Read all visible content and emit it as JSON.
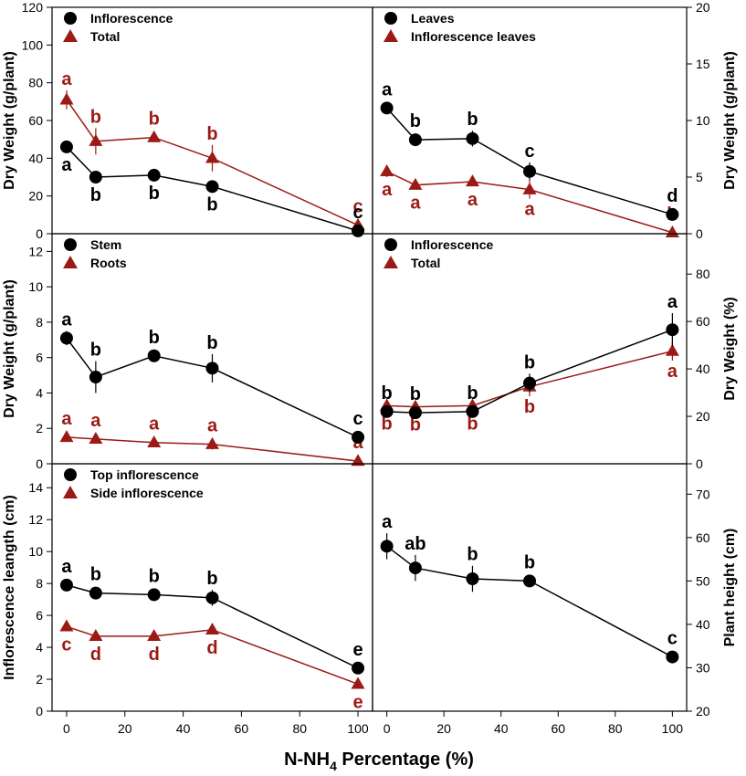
{
  "colors": {
    "s1": "#000000",
    "s2": "#9c1a15"
  },
  "x_axis_title": {
    "main": "N-NH",
    "sub": "4",
    "tail": " Percentage (%)"
  },
  "chart_data": [
    {
      "type": "line",
      "ylabel": "Dry Weight (g/plant)",
      "y_side": "left",
      "ylim": [
        0,
        120
      ],
      "yticks": [
        0,
        20,
        40,
        60,
        80,
        100,
        120
      ],
      "xlim": [
        -5,
        105
      ],
      "xticks": [],
      "legend": "top-left",
      "series": [
        {
          "name": "Inflorescence",
          "marker": "circle",
          "x": [
            0,
            10,
            30,
            50,
            100
          ],
          "y": [
            46,
            30,
            31,
            25,
            1.5
          ],
          "err": [
            3,
            2,
            2,
            3,
            1
          ],
          "letters": [
            "a",
            "b",
            "b",
            "b",
            "c"
          ],
          "letter_pos": [
            "below",
            "below",
            "below",
            "below",
            "above"
          ]
        },
        {
          "name": "Total",
          "marker": "triangle",
          "x": [
            0,
            10,
            30,
            50,
            100
          ],
          "y": [
            71,
            49,
            51,
            40,
            4.5
          ],
          "err": [
            5,
            7,
            2,
            7,
            1
          ],
          "letters": [
            "a",
            "b",
            "b",
            "b",
            "c"
          ],
          "letter_pos": [
            "above",
            "above",
            "above",
            "above",
            "above"
          ]
        }
      ]
    },
    {
      "type": "line",
      "ylabel": "Dry Weight (g/plant)",
      "y_side": "right",
      "ylim": [
        0,
        20
      ],
      "yticks": [
        0,
        5,
        10,
        15,
        20
      ],
      "xlim": [
        -5,
        105
      ],
      "xticks": [],
      "legend": "top-left",
      "series": [
        {
          "name": "Leaves",
          "marker": "circle",
          "x": [
            0,
            10,
            30,
            50,
            100
          ],
          "y": [
            11.1,
            8.3,
            8.4,
            5.5,
            1.7
          ],
          "err": [
            0.5,
            0.4,
            0.7,
            0.8,
            0.2
          ],
          "letters": [
            "a",
            "b",
            "b",
            "c",
            "d"
          ],
          "letter_pos": [
            "above",
            "above",
            "above",
            "above",
            "above"
          ]
        },
        {
          "name": "Inflorescence leaves",
          "marker": "triangle",
          "x": [
            0,
            10,
            30,
            50,
            100
          ],
          "y": [
            5.5,
            4.3,
            4.6,
            3.9,
            0.1
          ],
          "err": [
            0.5,
            0.3,
            0.3,
            0.8,
            0.1
          ],
          "letters": [
            "a",
            "a",
            "a",
            "a",
            "b"
          ],
          "letter_pos": [
            "below",
            "below",
            "below",
            "below",
            "above"
          ]
        }
      ]
    },
    {
      "type": "line",
      "ylabel": "Dry Weight (g/plant)",
      "y_side": "left",
      "ylim": [
        0,
        13
      ],
      "yticks": [
        0,
        2,
        4,
        6,
        8,
        10,
        12
      ],
      "xlim": [
        -5,
        105
      ],
      "xticks": [],
      "legend": "top-left",
      "series": [
        {
          "name": "Stem",
          "marker": "circle",
          "x": [
            0,
            10,
            30,
            50,
            100
          ],
          "y": [
            7.1,
            4.9,
            6.1,
            5.4,
            1.5
          ],
          "err": [
            0.4,
            0.9,
            0.3,
            0.8,
            0.2
          ],
          "letters": [
            "a",
            "b",
            "b",
            "b",
            "c"
          ],
          "letter_pos": [
            "above",
            "above",
            "above",
            "above",
            "above"
          ]
        },
        {
          "name": "Roots",
          "marker": "triangle",
          "x": [
            0,
            10,
            30,
            50,
            100
          ],
          "y": [
            1.5,
            1.4,
            1.2,
            1.1,
            0.15
          ],
          "err": [
            0.2,
            0.2,
            0.1,
            0.3,
            0.05
          ],
          "letters": [
            "a",
            "a",
            "a",
            "a",
            "a"
          ],
          "letter_pos": [
            "above",
            "above",
            "above",
            "above",
            "above"
          ]
        }
      ]
    },
    {
      "type": "line",
      "ylabel": "Dry Weight (%)",
      "y_side": "right",
      "ylim": [
        0,
        97
      ],
      "yticks": [
        0,
        20,
        40,
        60,
        80
      ],
      "xlim": [
        -5,
        105
      ],
      "xticks": [],
      "legend": "top-left",
      "series": [
        {
          "name": "Inflorescence",
          "marker": "circle",
          "x": [
            0,
            10,
            30,
            50,
            100
          ],
          "y": [
            22,
            21.5,
            22,
            34,
            56.5
          ],
          "err": [
            1,
            1,
            1,
            4,
            7
          ],
          "letters": [
            "b",
            "b",
            "b",
            "b",
            "a"
          ],
          "letter_pos": [
            "above",
            "above",
            "above",
            "above",
            "above"
          ]
        },
        {
          "name": "Total",
          "marker": "triangle",
          "x": [
            0,
            10,
            30,
            50,
            100
          ],
          "y": [
            24.5,
            24,
            24.5,
            32.5,
            47.5
          ],
          "err": [
            1,
            1,
            1,
            4,
            4
          ],
          "letters": [
            "b",
            "b",
            "b",
            "b",
            "a"
          ],
          "letter_pos": [
            "below",
            "below",
            "below",
            "below",
            "below"
          ]
        }
      ]
    },
    {
      "type": "line",
      "ylabel": "Inflorescence leangth (cm)",
      "y_side": "left",
      "ylim": [
        0,
        15.5
      ],
      "yticks": [
        0,
        2,
        4,
        6,
        8,
        10,
        12,
        14
      ],
      "xlim": [
        -5,
        105
      ],
      "xticks": [
        0,
        20,
        40,
        60,
        80,
        100
      ],
      "legend": "top-left",
      "series": [
        {
          "name": "Top inflorescence",
          "marker": "circle",
          "x": [
            0,
            10,
            30,
            50,
            100
          ],
          "y": [
            7.9,
            7.4,
            7.3,
            7.1,
            2.7
          ],
          "err": [
            0.3,
            0.3,
            0.3,
            0.5,
            0.3
          ],
          "letters": [
            "a",
            "b",
            "b",
            "b",
            "e"
          ],
          "letter_pos": [
            "above",
            "above",
            "above",
            "above",
            "above"
          ]
        },
        {
          "name": "Side inflorescence",
          "marker": "triangle",
          "x": [
            0,
            10,
            30,
            50,
            100
          ],
          "y": [
            5.3,
            4.7,
            4.7,
            5.1,
            1.7
          ],
          "err": [
            0.2,
            0.2,
            0.2,
            0.3,
            0.2
          ],
          "letters": [
            "c",
            "d",
            "d",
            "d",
            "e"
          ],
          "letter_pos": [
            "below",
            "below",
            "below",
            "below",
            "below"
          ]
        }
      ]
    },
    {
      "type": "line",
      "ylabel": "Plant height (cm)",
      "y_side": "right",
      "ylim": [
        20,
        77
      ],
      "yticks": [
        20,
        30,
        40,
        50,
        60,
        70
      ],
      "xlim": [
        -5,
        105
      ],
      "xticks": [
        0,
        20,
        40,
        60,
        80,
        100
      ],
      "legend": "none",
      "series": [
        {
          "name": "",
          "marker": "circle",
          "x": [
            0,
            10,
            30,
            50,
            100
          ],
          "y": [
            58,
            53,
            50.5,
            50,
            32.5
          ],
          "err": [
            3,
            3,
            3,
            1,
            1
          ],
          "letters": [
            "a",
            "ab",
            "b",
            "b",
            "c"
          ],
          "letter_pos": [
            "above",
            "above",
            "above",
            "above",
            "above"
          ]
        }
      ]
    }
  ]
}
